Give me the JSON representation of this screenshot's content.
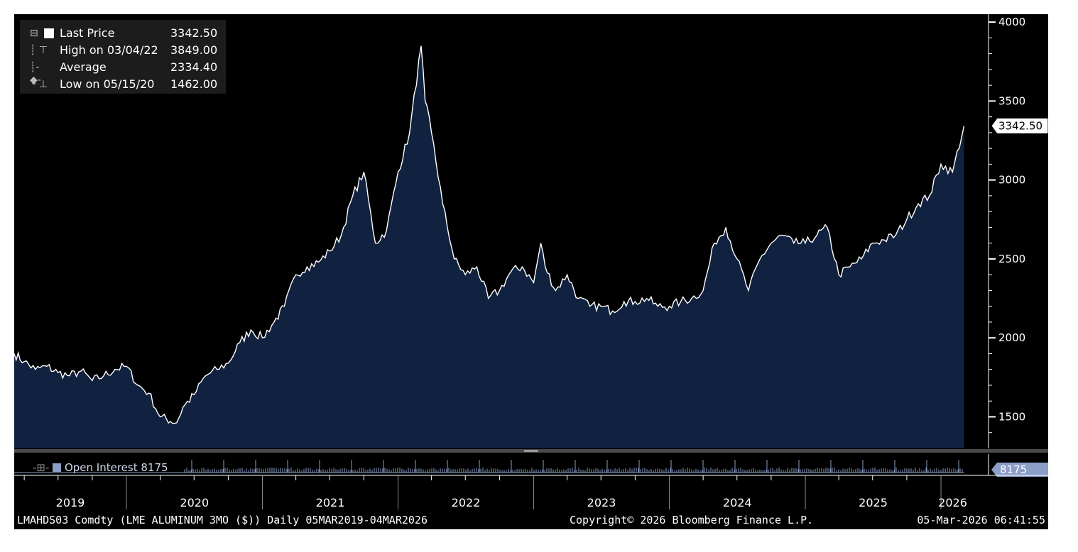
{
  "chart_data": {
    "type": "area",
    "ylim": [
      1300,
      4050
    ],
    "yticks": [
      "4000",
      "3500",
      "3000",
      "2500",
      "2000",
      "1500"
    ],
    "year_labels": [
      "2019",
      "2020",
      "2021",
      "2022",
      "2023",
      "2024",
      "2025",
      "2026"
    ],
    "legend": {
      "last_price_label": "Last Price",
      "last_price_value": "3342.50",
      "high_label": "High on 03/04/22",
      "high_value": "3849.00",
      "average_label": "Average",
      "average_value": "2334.40",
      "low_label": "Low on 05/15/20",
      "low_value": "1462.00"
    },
    "last_price_tag": "3342.50",
    "series": [
      {
        "name": "Last Price",
        "x": [
          "2019-03-05",
          "2019-04-01",
          "2019-05-01",
          "2019-06-01",
          "2019-07-01",
          "2019-08-01",
          "2019-09-01",
          "2019-10-01",
          "2019-11-01",
          "2019-12-01",
          "2020-01-01",
          "2020-02-01",
          "2020-03-01",
          "2020-04-01",
          "2020-05-15",
          "2020-06-01",
          "2020-07-01",
          "2020-08-01",
          "2020-09-01",
          "2020-10-01",
          "2020-11-01",
          "2020-12-01",
          "2021-01-01",
          "2021-02-01",
          "2021-03-01",
          "2021-04-01",
          "2021-05-01",
          "2021-06-01",
          "2021-07-01",
          "2021-08-01",
          "2021-09-01",
          "2021-10-01",
          "2021-11-01",
          "2021-12-01",
          "2022-01-01",
          "2022-02-01",
          "2022-03-04",
          "2022-03-15",
          "2022-04-01",
          "2022-05-01",
          "2022-06-01",
          "2022-07-01",
          "2022-08-01",
          "2022-09-01",
          "2022-10-01",
          "2022-11-01",
          "2022-12-01",
          "2023-01-01",
          "2023-01-20",
          "2023-02-01",
          "2023-03-01",
          "2023-04-01",
          "2023-05-01",
          "2023-06-01",
          "2023-07-01",
          "2023-08-01",
          "2023-09-01",
          "2023-10-01",
          "2023-11-01",
          "2023-12-01",
          "2024-01-01",
          "2024-02-01",
          "2024-03-01",
          "2024-04-01",
          "2024-05-01",
          "2024-06-01",
          "2024-07-01",
          "2024-08-01",
          "2024-09-01",
          "2024-10-01",
          "2024-11-01",
          "2024-12-01",
          "2025-01-01",
          "2025-02-01",
          "2025-03-01",
          "2025-04-01",
          "2025-05-01",
          "2025-06-01",
          "2025-07-01",
          "2025-08-01",
          "2025-09-01",
          "2025-10-01",
          "2025-11-01",
          "2025-12-01",
          "2026-01-01",
          "2026-02-01",
          "2026-03-04"
        ],
        "values": [
          1900,
          1850,
          1800,
          1820,
          1780,
          1760,
          1790,
          1730,
          1760,
          1800,
          1820,
          1700,
          1650,
          1500,
          1462,
          1560,
          1640,
          1760,
          1800,
          1840,
          1970,
          2050,
          2000,
          2100,
          2200,
          2400,
          2450,
          2480,
          2550,
          2650,
          2900,
          3050,
          2600,
          2680,
          3050,
          3300,
          3849,
          3500,
          3300,
          2850,
          2500,
          2400,
          2450,
          2250,
          2300,
          2420,
          2450,
          2350,
          2600,
          2450,
          2300,
          2400,
          2250,
          2200,
          2200,
          2170,
          2230,
          2230,
          2250,
          2200,
          2200,
          2230,
          2250,
          2300,
          2600,
          2700,
          2500,
          2300,
          2500,
          2600,
          2650,
          2600,
          2600,
          2650,
          2700,
          2400,
          2450,
          2500,
          2600,
          2620,
          2650,
          2750,
          2850,
          2900,
          3100,
          3050,
          3342.5
        ]
      }
    ],
    "open_interest_label": "Open Interest",
    "open_interest_value": "8175"
  },
  "footer": {
    "left": "LMAHDS03 Comdty (LME ALUMINUM  3MO ($)) Daily 05MAR2019-04MAR2026",
    "center": "Copyright© 2026 Bloomberg Finance L.P.",
    "right": "05-Mar-2026 06:41:55"
  },
  "colors": {
    "background": "#000000",
    "area_fill": "#112240",
    "line": "#ffffff",
    "legend_bg": "#1c1c1c",
    "oi_bar": "#8a9ec8"
  }
}
